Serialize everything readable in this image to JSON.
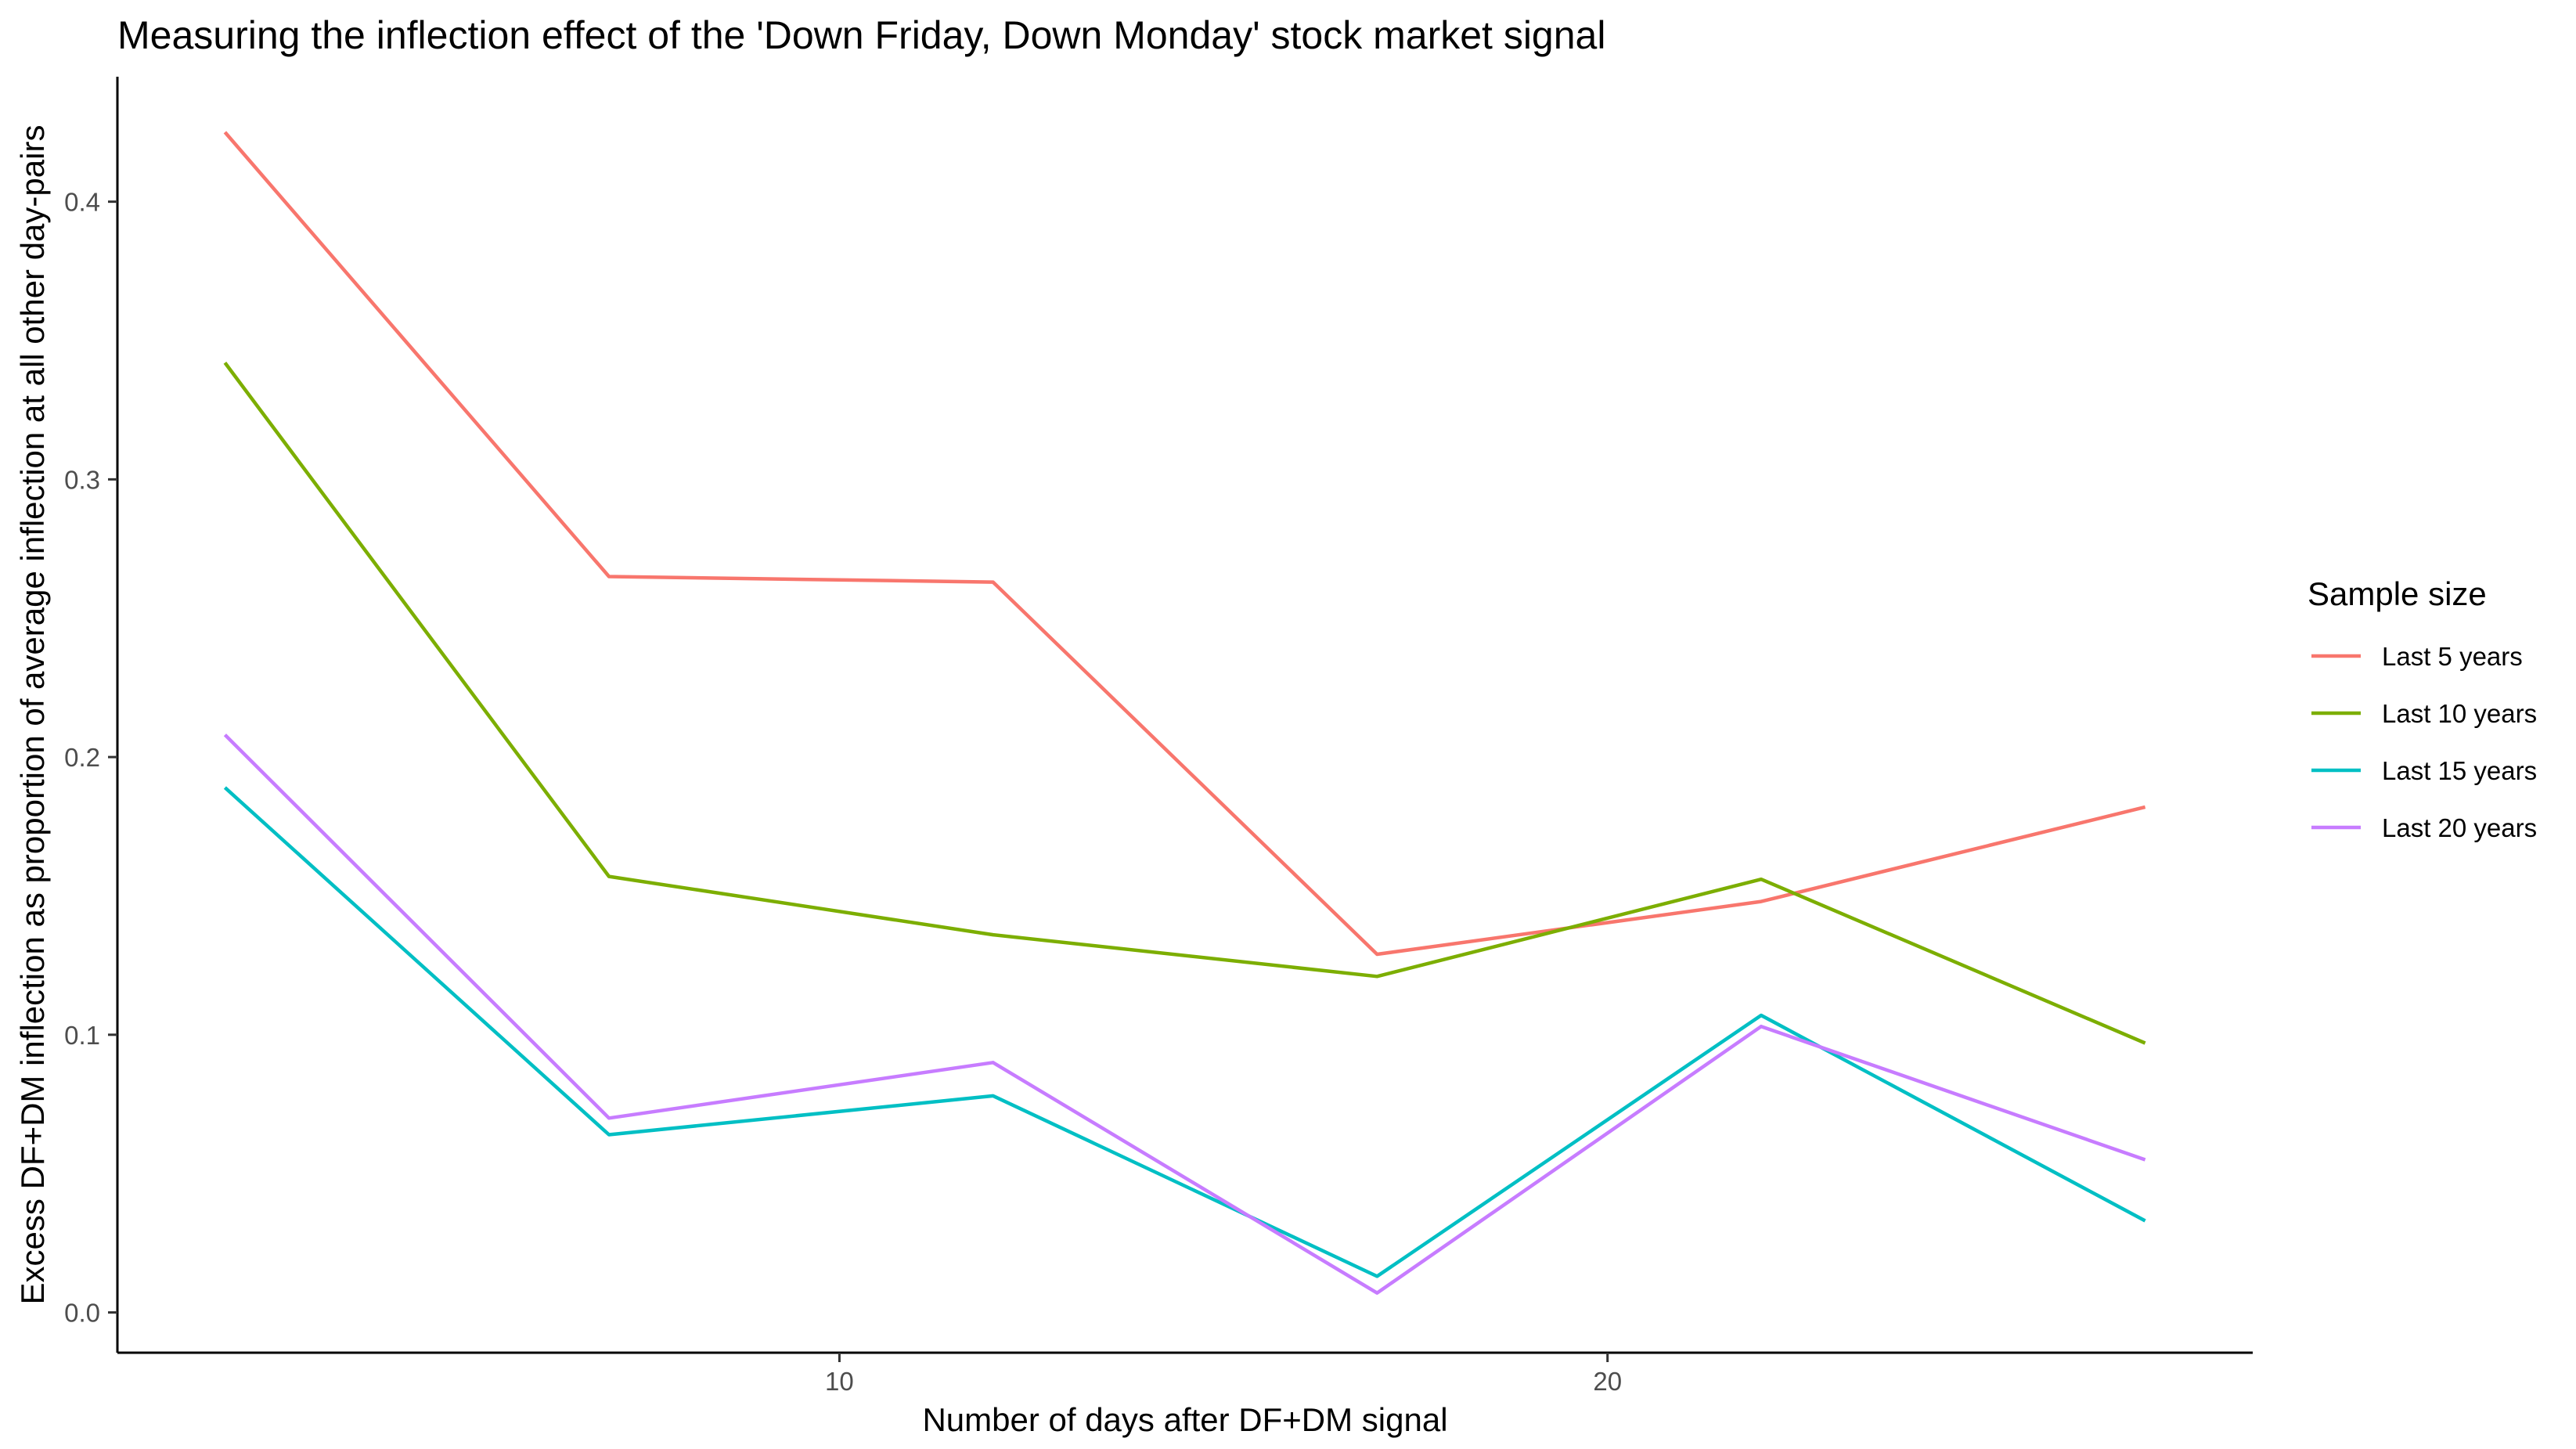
{
  "chart_data": {
    "type": "line",
    "title": "Measuring the inflection effect of the 'Down Friday, Down Monday' stock market signal",
    "xlabel": "Number of days after DF+DM signal",
    "ylabel": "Excess DF+DM inflection as proportion of average inflection at all other day-pairs",
    "x": [
      2,
      7,
      12,
      17,
      22,
      27
    ],
    "xlim": [
      0.6,
      28.4
    ],
    "ylim": [
      -0.0145,
      0.445
    ],
    "x_ticks": [
      10,
      20
    ],
    "x_tick_labels": [
      "10",
      "20"
    ],
    "y_ticks": [
      0.0,
      0.1,
      0.2,
      0.3,
      0.4
    ],
    "y_tick_labels": [
      "0.0",
      "0.1",
      "0.2",
      "0.3",
      "0.4"
    ],
    "grid": false,
    "legend_title": "Sample size",
    "legend_position": "right",
    "series": [
      {
        "name": "Last 5 years",
        "color": "#F8766D",
        "values": [
          0.425,
          0.265,
          0.263,
          0.129,
          0.148,
          0.182
        ]
      },
      {
        "name": "Last 10 years",
        "color": "#7CAE00",
        "values": [
          0.342,
          0.157,
          0.136,
          0.121,
          0.156,
          0.097
        ]
      },
      {
        "name": "Last 15 years",
        "color": "#00BFC4",
        "values": [
          0.189,
          0.064,
          0.078,
          0.013,
          0.107,
          0.033
        ]
      },
      {
        "name": "Last 20 years",
        "color": "#C77CFF",
        "values": [
          0.208,
          0.07,
          0.09,
          0.007,
          0.103,
          0.055
        ]
      }
    ]
  }
}
